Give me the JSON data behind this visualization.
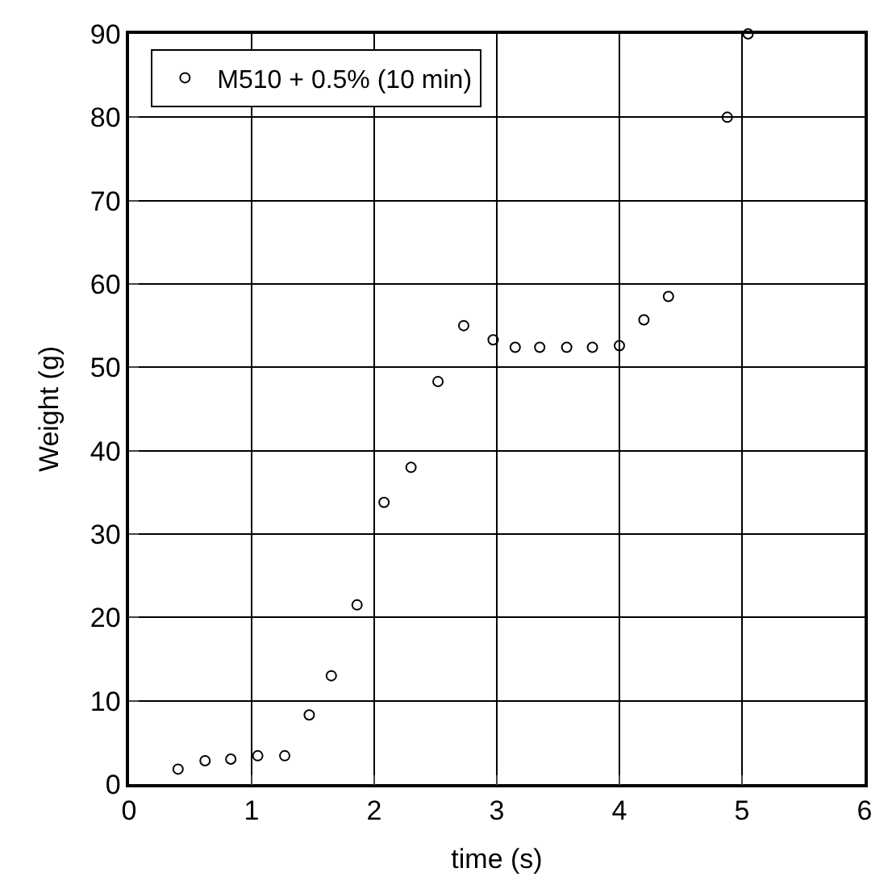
{
  "chart_data": {
    "type": "scatter",
    "xlabel": "time (s)",
    "ylabel": "Weight (g)",
    "x": [
      0.4,
      0.62,
      0.83,
      1.05,
      1.27,
      1.47,
      1.65,
      1.86,
      2.08,
      2.3,
      2.52,
      2.73,
      2.97,
      3.15,
      3.35,
      3.57,
      3.78,
      4.0,
      4.2,
      4.4,
      4.88,
      5.05
    ],
    "series": [
      {
        "name": "M510 + 0.5% (10 min)",
        "color": "#000000",
        "values": [
          1.8,
          2.8,
          3,
          3.4,
          3.4,
          8.3,
          13,
          21.5,
          33.8,
          38,
          48.3,
          55,
          53.3,
          52.4,
          52.4,
          52.4,
          52.4,
          52.6,
          55.7,
          58.5,
          80,
          90
        ]
      }
    ],
    "xlim": [
      0,
      6
    ],
    "xticks": [
      0,
      1,
      2,
      3,
      4,
      5,
      6
    ],
    "ylim": [
      0,
      90
    ],
    "yticks": [
      0,
      10,
      20,
      30,
      40,
      50,
      60,
      70,
      80,
      90
    ],
    "grid": true,
    "legend": "top left",
    "marker": "circle"
  }
}
